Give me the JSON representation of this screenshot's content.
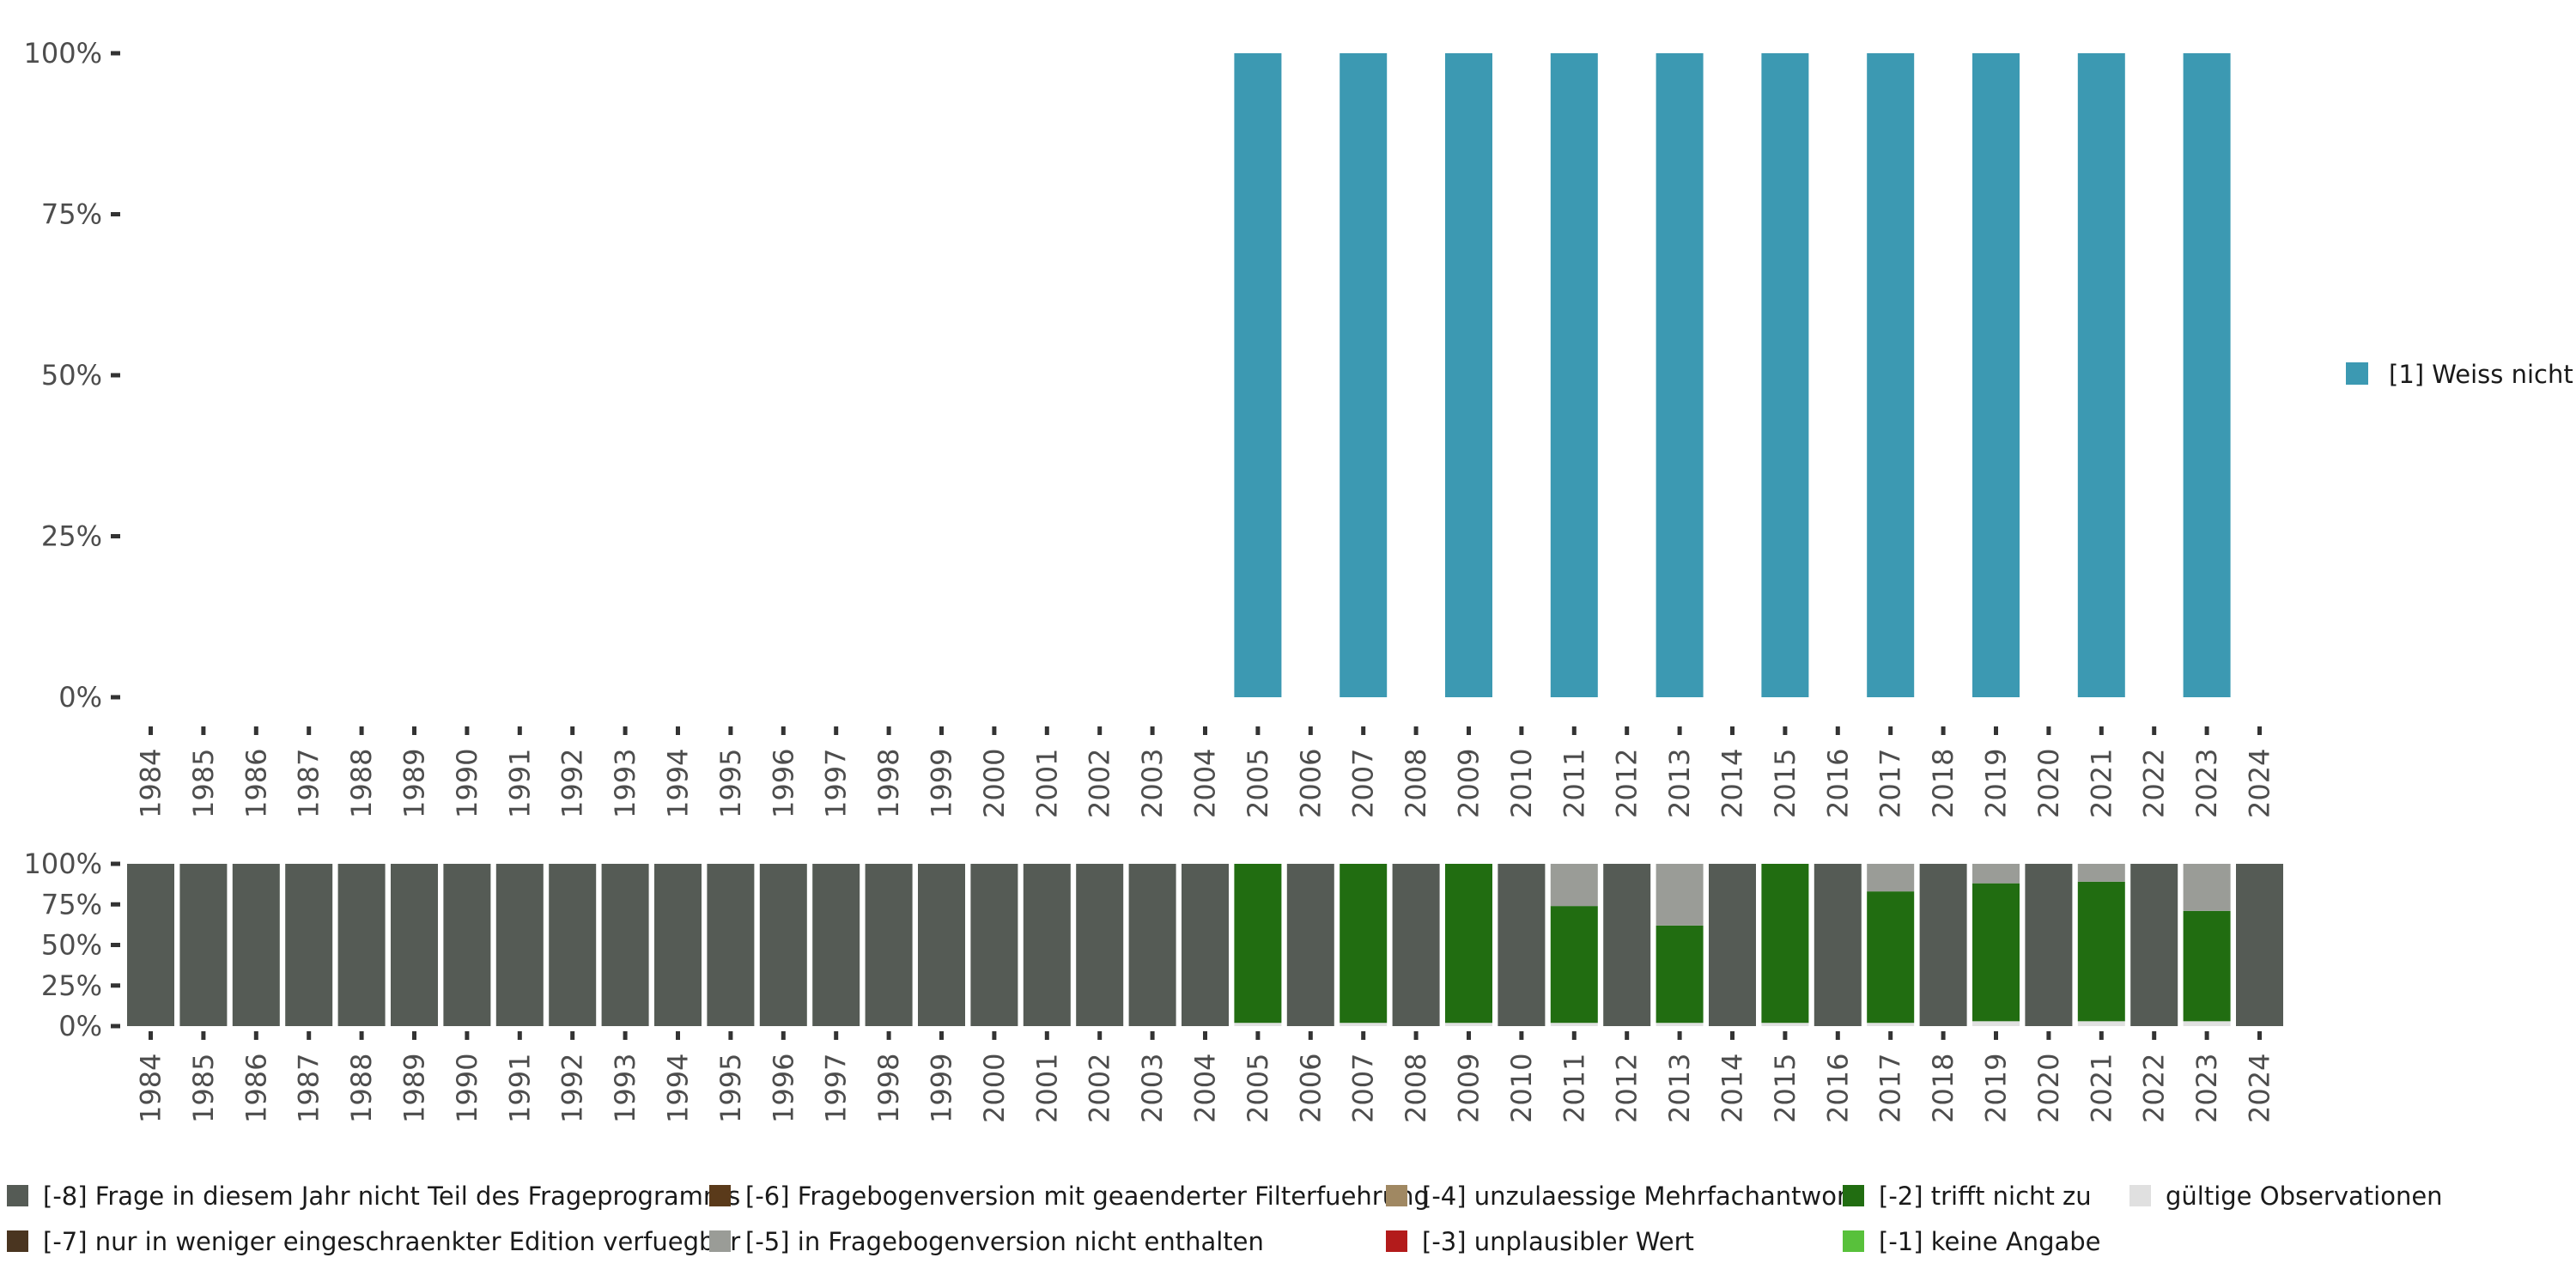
{
  "chart_data": [
    {
      "type": "bar",
      "title": "",
      "xlabel": "",
      "ylabel": "",
      "ylim": [
        0,
        100
      ],
      "y_ticks": [
        "0%",
        "25%",
        "50%",
        "75%",
        "100%"
      ],
      "categories": [
        "1984",
        "1985",
        "1986",
        "1987",
        "1988",
        "1989",
        "1990",
        "1991",
        "1992",
        "1993",
        "1994",
        "1995",
        "1996",
        "1997",
        "1998",
        "1999",
        "2000",
        "2001",
        "2002",
        "2003",
        "2004",
        "2005",
        "2006",
        "2007",
        "2008",
        "2009",
        "2010",
        "2011",
        "2012",
        "2013",
        "2014",
        "2015",
        "2016",
        "2017",
        "2018",
        "2019",
        "2020",
        "2021",
        "2022",
        "2023",
        "2024"
      ],
      "series": [
        {
          "name": "[1] Weiss nicht",
          "color": "#3c99b2",
          "values": [
            null,
            null,
            null,
            null,
            null,
            null,
            null,
            null,
            null,
            null,
            null,
            null,
            null,
            null,
            null,
            null,
            null,
            null,
            null,
            null,
            null,
            100,
            null,
            100,
            null,
            100,
            null,
            100,
            null,
            100,
            null,
            100,
            null,
            100,
            null,
            100,
            null,
            100,
            null,
            100,
            null
          ]
        }
      ],
      "legend": {
        "position": "right"
      }
    },
    {
      "type": "stacked_bar",
      "title": "",
      "xlabel": "",
      "ylabel": "",
      "ylim": [
        0,
        100
      ],
      "y_ticks": [
        "0%",
        "25%",
        "50%",
        "75%",
        "100%"
      ],
      "categories": [
        "1984",
        "1985",
        "1986",
        "1987",
        "1988",
        "1989",
        "1990",
        "1991",
        "1992",
        "1993",
        "1994",
        "1995",
        "1996",
        "1997",
        "1998",
        "1999",
        "2000",
        "2001",
        "2002",
        "2003",
        "2004",
        "2005",
        "2006",
        "2007",
        "2008",
        "2009",
        "2010",
        "2011",
        "2012",
        "2013",
        "2014",
        "2015",
        "2016",
        "2017",
        "2018",
        "2019",
        "2020",
        "2021",
        "2022",
        "2023",
        "2024"
      ],
      "series": [
        {
          "name": "gültige Observationen",
          "color": "#e0e0e0",
          "values": [
            0,
            0,
            0,
            0,
            0,
            0,
            0,
            0,
            0,
            0,
            0,
            0,
            0,
            0,
            0,
            0,
            0,
            0,
            0,
            0,
            0,
            2,
            0,
            2,
            0,
            2,
            0,
            2,
            0,
            2,
            0,
            2,
            0,
            2,
            0,
            3,
            0,
            3,
            0,
            3,
            0
          ]
        },
        {
          "name": "[-1] keine Angabe",
          "color": "#58c13b",
          "values": [
            0,
            0,
            0,
            0,
            0,
            0,
            0,
            0,
            0,
            0,
            0,
            0,
            0,
            0,
            0,
            0,
            0,
            0,
            0,
            0,
            0,
            0,
            0,
            0,
            0,
            0,
            0,
            0,
            0,
            0,
            0,
            0,
            0,
            0,
            0,
            0,
            0,
            0,
            0,
            0,
            0
          ]
        },
        {
          "name": "[-2] trifft nicht zu",
          "color": "#216d11",
          "values": [
            0,
            0,
            0,
            0,
            0,
            0,
            0,
            0,
            0,
            0,
            0,
            0,
            0,
            0,
            0,
            0,
            0,
            0,
            0,
            0,
            0,
            98,
            0,
            98,
            0,
            98,
            0,
            72,
            0,
            60,
            0,
            98,
            0,
            81,
            0,
            85,
            0,
            86,
            0,
            68,
            0
          ]
        },
        {
          "name": "[-3] unplausibler Wert",
          "color": "#b31b1b",
          "values": [
            0,
            0,
            0,
            0,
            0,
            0,
            0,
            0,
            0,
            0,
            0,
            0,
            0,
            0,
            0,
            0,
            0,
            0,
            0,
            0,
            0,
            0,
            0,
            0,
            0,
            0,
            0,
            0,
            0,
            0,
            0,
            0,
            0,
            0,
            0,
            0,
            0,
            0,
            0,
            0,
            0
          ]
        },
        {
          "name": "[-4] unzulaessige Mehrfachantwort",
          "color": "#a08862",
          "values": [
            0,
            0,
            0,
            0,
            0,
            0,
            0,
            0,
            0,
            0,
            0,
            0,
            0,
            0,
            0,
            0,
            0,
            0,
            0,
            0,
            0,
            0,
            0,
            0,
            0,
            0,
            0,
            0,
            0,
            0,
            0,
            0,
            0,
            0,
            0,
            0,
            0,
            0,
            0,
            0,
            0
          ]
        },
        {
          "name": "[-5] in Fragebogenversion nicht enthalten",
          "color": "#9a9c97",
          "values": [
            0,
            0,
            0,
            0,
            0,
            0,
            0,
            0,
            0,
            0,
            0,
            0,
            0,
            0,
            0,
            0,
            0,
            0,
            0,
            0,
            0,
            0,
            0,
            0,
            0,
            0,
            0,
            26,
            0,
            38,
            0,
            0,
            0,
            17,
            0,
            12,
            0,
            11,
            0,
            29,
            0
          ]
        },
        {
          "name": "[-6] Fragebogenversion mit geaenderter Filterfuehrung",
          "color": "#5a3a1a",
          "values": [
            0,
            0,
            0,
            0,
            0,
            0,
            0,
            0,
            0,
            0,
            0,
            0,
            0,
            0,
            0,
            0,
            0,
            0,
            0,
            0,
            0,
            0,
            0,
            0,
            0,
            0,
            0,
            0,
            0,
            0,
            0,
            0,
            0,
            0,
            0,
            0,
            0,
            0,
            0,
            0,
            0
          ]
        },
        {
          "name": "[-7] nur in weniger eingeschraenkter Edition verfuegbar",
          "color": "#4a3520",
          "values": [
            0,
            0,
            0,
            0,
            0,
            0,
            0,
            0,
            0,
            0,
            0,
            0,
            0,
            0,
            0,
            0,
            0,
            0,
            0,
            0,
            0,
            0,
            0,
            0,
            0,
            0,
            0,
            0,
            0,
            0,
            0,
            0,
            0,
            0,
            0,
            0,
            0,
            0,
            0,
            0,
            0
          ]
        },
        {
          "name": "[-8] Frage in diesem Jahr nicht Teil des Frageprogramms",
          "color": "#555b55",
          "values": [
            100,
            100,
            100,
            100,
            100,
            100,
            100,
            100,
            100,
            100,
            100,
            100,
            100,
            100,
            100,
            100,
            100,
            100,
            100,
            100,
            100,
            0,
            100,
            0,
            100,
            0,
            100,
            0,
            100,
            0,
            100,
            0,
            100,
            0,
            100,
            0,
            100,
            0,
            100,
            0,
            100
          ]
        }
      ],
      "legend": {
        "position": "bottom",
        "items": [
          {
            "label": "[-8] Frage in diesem Jahr nicht Teil des Frageprogramms",
            "color": "#555b55"
          },
          {
            "label": "[-7] nur in weniger eingeschraenkter Edition verfuegbar",
            "color": "#4a3520"
          },
          {
            "label": "[-6] Fragebogenversion mit geaenderter Filterfuehrung",
            "color": "#5a3a1a"
          },
          {
            "label": "[-5] in Fragebogenversion nicht enthalten",
            "color": "#9a9c97"
          },
          {
            "label": "[-4] unzulaessige Mehrfachantwort",
            "color": "#a08862"
          },
          {
            "label": "[-3] unplausibler Wert",
            "color": "#b31b1b"
          },
          {
            "label": "[-2] trifft nicht zu",
            "color": "#216d11"
          },
          {
            "label": "[-1] keine Angabe",
            "color": "#58c13b"
          },
          {
            "label": "gültige Observationen",
            "color": "#e0e0e0"
          }
        ]
      }
    }
  ]
}
